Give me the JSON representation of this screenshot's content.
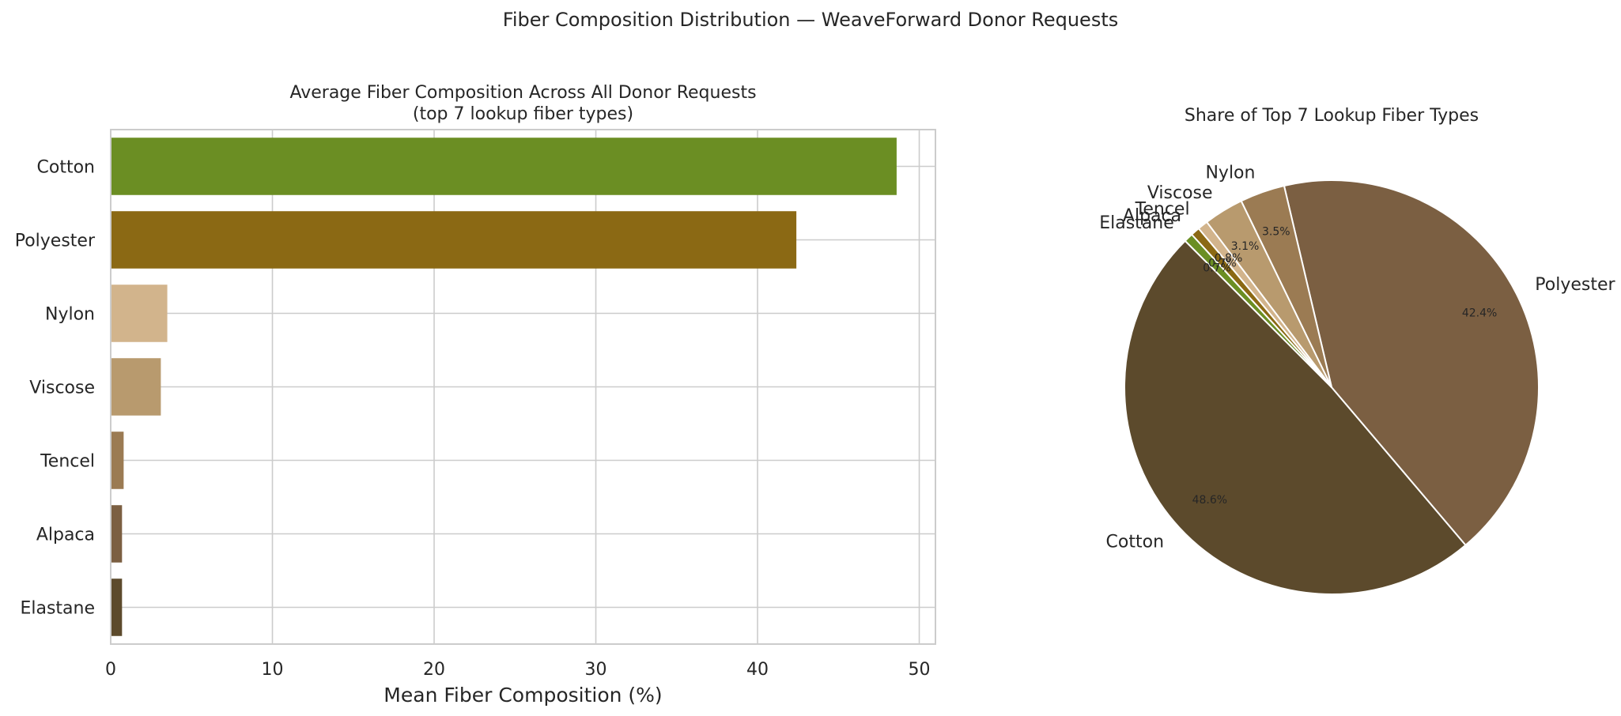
{
  "suptitle": "Fiber Composition Distribution — WeaveForward Donor Requests",
  "colors": {
    "background": "#ffffff",
    "grid": "#cccccc",
    "spine": "#cccccc",
    "text": "#262626",
    "wedge_edge": "#ffffff"
  },
  "chart_data": [
    {
      "type": "bar",
      "orientation": "horizontal",
      "title": "Average Fiber Composition Across All Donor Requests",
      "subtitle": "(top 7 lookup fiber types)",
      "xlabel": "Mean Fiber Composition (%)",
      "ylabel": "",
      "categories": [
        "Cotton",
        "Polyester",
        "Nylon",
        "Viscose",
        "Tencel",
        "Alpaca",
        "Elastane"
      ],
      "values": [
        48.6,
        42.4,
        3.5,
        3.1,
        0.8,
        0.7,
        0.7
      ],
      "colors": [
        "#6b8e23",
        "#8b6914",
        "#d2b48c",
        "#b89a6e",
        "#9b7b53",
        "#7b5f42",
        "#5c4a2c"
      ],
      "xlim": [
        0,
        51
      ],
      "xticks": [
        0,
        10,
        20,
        30,
        40,
        50
      ],
      "grid": true
    },
    {
      "type": "pie",
      "title": "Share of Top 7 Lookup Fiber Types",
      "labels": [
        "Cotton",
        "Polyester",
        "Nylon",
        "Viscose",
        "Tencel",
        "Alpaca",
        "Elastane"
      ],
      "values": [
        48.6,
        42.4,
        3.5,
        3.1,
        0.8,
        0.7,
        0.7
      ],
      "pct_labels": [
        "48.6%",
        "42.4%",
        "3.5%",
        "3.1%",
        "0.8%",
        "0.7%",
        "0.7%"
      ],
      "colors": [
        "#5c4a2c",
        "#7b5f42",
        "#9b7b53",
        "#b89a6e",
        "#d2b48c",
        "#8b6914",
        "#6b8e23"
      ],
      "start_angle": 135,
      "direction": "counterclockwise"
    }
  ]
}
